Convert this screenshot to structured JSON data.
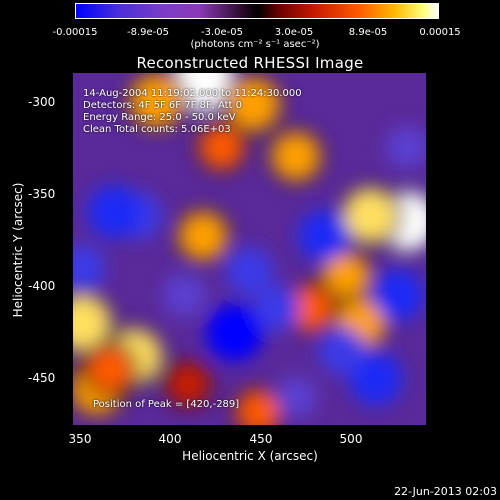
{
  "chart_data": {
    "type": "heatmap",
    "title": "Reconstructed RHESSI Image",
    "xlabel": "Heliocentric X (arcsec)",
    "ylabel": "Heliocentric Y (arcsec)",
    "xlim": [
      350,
      540
    ],
    "ylim": [
      -475,
      -285
    ],
    "xticks": [
      "350",
      "400",
      "450",
      "500"
    ],
    "yticks": [
      "-300",
      "-350",
      "-400",
      "-450"
    ],
    "colorbar": {
      "ticks": [
        "-0.00015",
        "-8.9e-05",
        "-3.0e-05",
        "3.0e-05",
        "8.9e-05",
        "0.00015"
      ],
      "units": "(photons cm⁻² s⁻¹ asec⁻²)",
      "min": -0.00015,
      "max": 0.00015
    },
    "annotations": {
      "time": "14-Aug-2004 11:19:02.000 to 11:24:30.000",
      "detectors": "Detectors: 4F 5F 6F 7F 8F, Att 0",
      "energy": "Energy Range: 25.0 - 50.0 keV",
      "method": "Clean     Total counts: 5.06E+03",
      "peak": "Position of Peak = [420,-289]"
    },
    "sources": [
      {
        "x": 420,
        "y": -289,
        "value": 0.00015
      },
      {
        "x": 530,
        "y": -365,
        "value": 0.00013
      },
      {
        "x": 510,
        "y": -362,
        "value": 0.00011
      },
      {
        "x": 395,
        "y": -300,
        "value": 0.0001
      },
      {
        "x": 447,
        "y": -302,
        "value": 0.0001
      },
      {
        "x": 470,
        "y": -330,
        "value": 8e-05
      },
      {
        "x": 355,
        "y": -420,
        "value": 0.00012
      },
      {
        "x": 383,
        "y": -438,
        "value": 0.00011
      },
      {
        "x": 363,
        "y": -455,
        "value": 0.0001
      },
      {
        "x": 420,
        "y": -373,
        "value": 8e-05
      },
      {
        "x": 497,
        "y": -395,
        "value": 8e-05
      },
      {
        "x": 505,
        "y": -420,
        "value": 9e-05
      },
      {
        "x": 478,
        "y": -412,
        "value": 7e-05
      },
      {
        "x": 450,
        "y": -468,
        "value": 6e-05
      },
      {
        "x": 412,
        "y": -453,
        "value": 5e-05
      },
      {
        "x": 430,
        "y": -325,
        "value": 6e-05
      },
      {
        "x": 370,
        "y": -445,
        "value": 7e-05
      },
      {
        "x": 385,
        "y": -362,
        "value": -9e-05
      },
      {
        "x": 437,
        "y": -425,
        "value": -0.00014
      },
      {
        "x": 485,
        "y": -373,
        "value": -0.00011
      },
      {
        "x": 513,
        "y": -450,
        "value": -0.00012
      },
      {
        "x": 495,
        "y": -435,
        "value": -9e-05
      },
      {
        "x": 525,
        "y": -405,
        "value": -0.00011
      },
      {
        "x": 372,
        "y": -360,
        "value": -0.00012
      },
      {
        "x": 460,
        "y": -412,
        "value": -8e-05
      },
      {
        "x": 445,
        "y": -392,
        "value": -9e-05
      },
      {
        "x": 470,
        "y": -460,
        "value": -6e-05
      },
      {
        "x": 355,
        "y": -390,
        "value": -8e-05
      },
      {
        "x": 530,
        "y": -325,
        "value": -7e-05
      },
      {
        "x": 410,
        "y": -405,
        "value": -7e-05
      }
    ]
  },
  "footer": {
    "timestamp": "22-Jun-2013 02:03"
  }
}
